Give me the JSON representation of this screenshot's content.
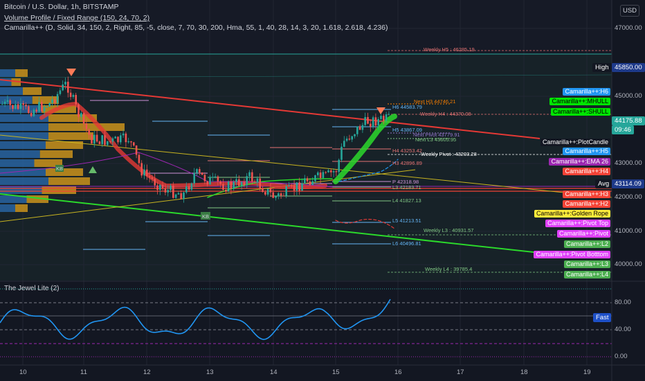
{
  "header": {
    "symbol_line": "Bitcoin / U.S. Dollar, 1h, BITSTAMP",
    "volume_profile_line": "Volume Profile / Fixed Range (150, 24, 70, 2)",
    "camarilla_line": "Camarilla++ (D, Solid, 34, 150, 2, Right, 85, -5, close, 7, 70, 30, 200, Hma, 55, 1, 40, 28, 14, 3, 20, 1.618, 2.618, 4.236)",
    "oscillator_title": "The Jewel Lite (2)"
  },
  "currency_button": "USD",
  "price_axis": [
    "47000.00",
    "45000.00",
    "43000.00",
    "42000.00",
    "41000.00",
    "40000.00"
  ],
  "osc_axis": [
    "80.00",
    "40.00",
    "0.00"
  ],
  "time_axis": [
    "10",
    "11",
    "12",
    "13",
    "14",
    "15",
    "16",
    "17",
    "18",
    "19"
  ],
  "price_tags": {
    "high_label": "High",
    "high_value": "45850.00",
    "last_value": "44175.88",
    "countdown": "09:46",
    "avg_label": "Avg",
    "avg_value": "43114.09",
    "fast_label": "Fast"
  },
  "right_labels": [
    {
      "text": "Camarilla++:H6",
      "color": "#2196f3"
    },
    {
      "text": "Camarilla++:MHULL",
      "color": "#00e600"
    },
    {
      "text": "Camarilla++:SHULL",
      "color": "#00e600"
    },
    {
      "text": "Camarilla++:PlotCandle",
      "color": "#131722"
    },
    {
      "text": "Camarilla++:H5",
      "color": "#2196f3"
    },
    {
      "text": "Camarilla++:EMA 26",
      "color": "#9c27b0"
    },
    {
      "text": "Camarilla++:H4",
      "color": "#f44336"
    },
    {
      "text": "Camarilla++:H3",
      "color": "#f44336"
    },
    {
      "text": "Camarilla++:H2",
      "color": "#f44336"
    },
    {
      "text": "Camarilla++:Golden Rope",
      "color": "#ffeb3b"
    },
    {
      "text": "Camarilla++:Pivot Top",
      "color": "#e040fb"
    },
    {
      "text": "Camarilla++:Pivot",
      "color": "#e040fb"
    },
    {
      "text": "Camarilla++:L2",
      "color": "#4caf50"
    },
    {
      "text": "Camarilla++:Pivot Botttom",
      "color": "#e040fb"
    },
    {
      "text": "Camarilla++:L3",
      "color": "#4caf50"
    },
    {
      "text": "Camarilla++:L4",
      "color": "#4caf50"
    }
  ],
  "level_labels": [
    {
      "text": "Weekly H5 : 46285.19",
      "color": "#e57373"
    },
    {
      "text": "Next H3 44746.21",
      "color": "#f57c00"
    },
    {
      "text": "H6 44583.79",
      "color": "#64b5f6"
    },
    {
      "text": "Weekly H4 : 44370.08",
      "color": "#e57373"
    },
    {
      "text": "H5 43867.09",
      "color": "#64b5f6"
    },
    {
      "text": "Next Pivot 43779.91",
      "color": "#9575cd"
    },
    {
      "text": "Next L3 43605.95",
      "color": "#81c784"
    },
    {
      "text": "H4 43253.42",
      "color": "#e57373"
    },
    {
      "text": "Weekly Pivot : 43203.28",
      "color": "#ffffff"
    },
    {
      "text": "H3 42896.89",
      "color": "#e57373"
    },
    {
      "text": "P 42318.98",
      "color": "#ce93d8"
    },
    {
      "text": "L3 42183.71",
      "color": "#81c784"
    },
    {
      "text": "L4 41827.13",
      "color": "#81c784"
    },
    {
      "text": "L5 41213.51",
      "color": "#64b5f6"
    },
    {
      "text": "Weekly L3 : 40931.57",
      "color": "#81c784"
    },
    {
      "text": "L6 40496.81",
      "color": "#64b5f6"
    },
    {
      "text": "Weekly L4 : 39785.4",
      "color": "#81c784"
    }
  ],
  "vp_labels": [
    "KB",
    "KB"
  ],
  "colors": {
    "background": "#131722",
    "up": "#26a69a",
    "down": "#ef5350",
    "volume_profile": "#e3a21a",
    "volume_profile_value": "#2b6cb0",
    "trend_red": "#e53935",
    "trend_green": "#2bd92b",
    "trend_yellow": "#c8b420",
    "oscillator": "#2196f3"
  }
}
